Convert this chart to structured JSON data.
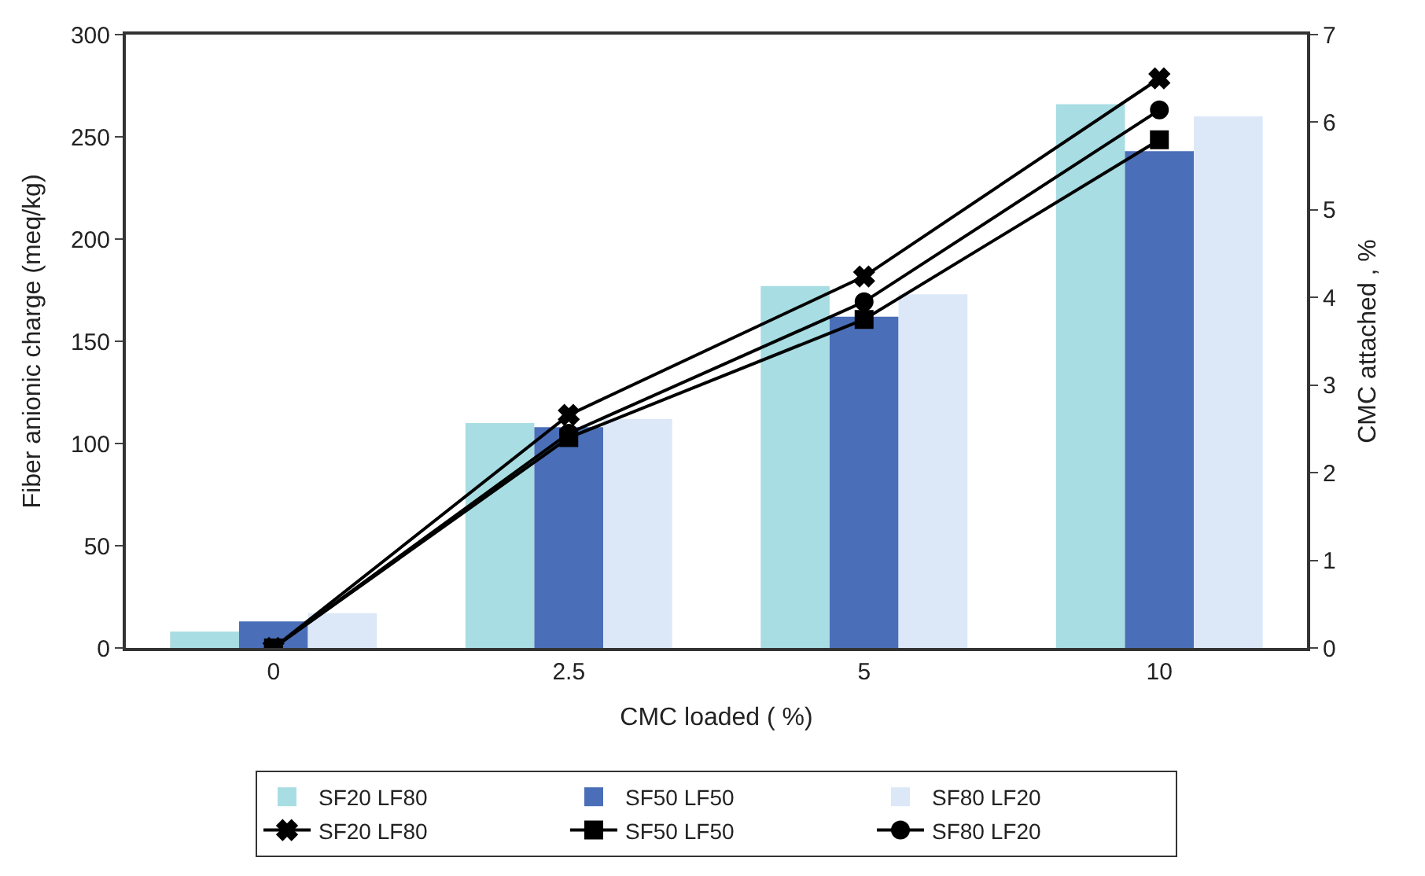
{
  "chart_data": {
    "type": "bar",
    "xlabel": "CMC loaded ( %)",
    "ylabel": "Fiber anionic charge (meq/kg)",
    "y2label": "CMC attached , %",
    "categories": [
      "0",
      "2.5",
      "5",
      "10"
    ],
    "series": [
      {
        "name": "SF20 LF80",
        "color": "#a8dde3",
        "values": [
          8,
          110,
          177,
          266
        ]
      },
      {
        "name": "SF50 LF50",
        "color": "#4a6fb8",
        "values": [
          13,
          108,
          162,
          243
        ]
      },
      {
        "name": "SF80 LF20",
        "color": "#dce8f8",
        "values": [
          17,
          112,
          173,
          260
        ]
      },
      {
        "name": "SF20 LF80",
        "type": "line",
        "axis": "y2",
        "marker": "cross",
        "color": "#000000",
        "values": [
          0,
          2.66,
          4.24,
          6.5
        ]
      },
      {
        "name": "SF50 LF50",
        "type": "line",
        "axis": "y2",
        "marker": "square",
        "color": "#000000",
        "values": [
          0,
          2.4,
          3.75,
          5.8
        ]
      },
      {
        "name": "SF80 LF20",
        "type": "line",
        "axis": "y2",
        "marker": "circle",
        "color": "#000000",
        "values": [
          0,
          2.45,
          3.95,
          6.14
        ]
      }
    ],
    "ylim": [
      0,
      300
    ],
    "yticks": [
      0,
      50,
      100,
      150,
      200,
      250,
      300
    ],
    "y2lim": [
      0,
      7
    ],
    "y2ticks": [
      0,
      1,
      2,
      3,
      4,
      5,
      6,
      7
    ],
    "legend": "bottom"
  }
}
